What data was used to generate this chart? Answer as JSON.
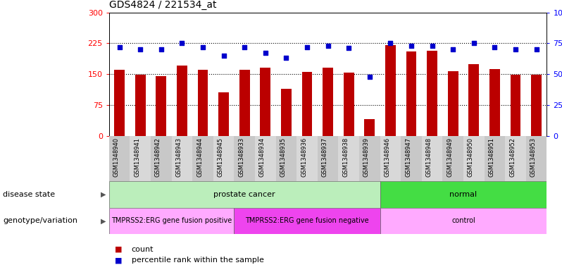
{
  "title": "GDS4824 / 221534_at",
  "samples": [
    "GSM1348940",
    "GSM1348941",
    "GSM1348942",
    "GSM1348943",
    "GSM1348944",
    "GSM1348945",
    "GSM1348933",
    "GSM1348934",
    "GSM1348935",
    "GSM1348936",
    "GSM1348937",
    "GSM1348938",
    "GSM1348939",
    "GSM1348946",
    "GSM1348947",
    "GSM1348948",
    "GSM1348949",
    "GSM1348950",
    "GSM1348951",
    "GSM1348952",
    "GSM1348953"
  ],
  "counts": [
    160,
    148,
    145,
    170,
    160,
    105,
    160,
    165,
    115,
    155,
    165,
    153,
    40,
    220,
    205,
    207,
    157,
    175,
    162,
    148,
    148
  ],
  "percentiles": [
    72,
    70,
    70,
    75,
    72,
    65,
    72,
    67,
    63,
    72,
    73,
    71,
    48,
    75,
    73,
    73,
    70,
    75,
    72,
    70,
    70
  ],
  "bar_color": "#bb0000",
  "dot_color": "#0000cc",
  "ylim_left": [
    0,
    300
  ],
  "ylim_right": [
    0,
    100
  ],
  "yticks_left": [
    0,
    75,
    150,
    225,
    300
  ],
  "yticks_right": [
    0,
    25,
    50,
    75,
    100
  ],
  "hlines": [
    75,
    150,
    225
  ],
  "disease_state_groups": [
    {
      "label": "prostate cancer",
      "start": 0,
      "end": 13,
      "color": "#bbeebb"
    },
    {
      "label": "normal",
      "start": 13,
      "end": 21,
      "color": "#44dd44"
    }
  ],
  "genotype_groups": [
    {
      "label": "TMPRSS2:ERG gene fusion positive",
      "start": 0,
      "end": 6,
      "color": "#ffaaff"
    },
    {
      "label": "TMPRSS2:ERG gene fusion negative",
      "start": 6,
      "end": 13,
      "color": "#ee44ee"
    },
    {
      "label": "control",
      "start": 13,
      "end": 21,
      "color": "#ffaaff"
    }
  ],
  "legend_count_label": "count",
  "legend_pct_label": "percentile rank within the sample",
  "disease_state_label": "disease state",
  "genotype_label": "genotype/variation",
  "background_color": "#ffffff",
  "title_fontsize": 10,
  "axis_fontsize": 8,
  "anno_fontsize": 8,
  "sample_fontsize": 6,
  "genotype_fontsize": 7
}
